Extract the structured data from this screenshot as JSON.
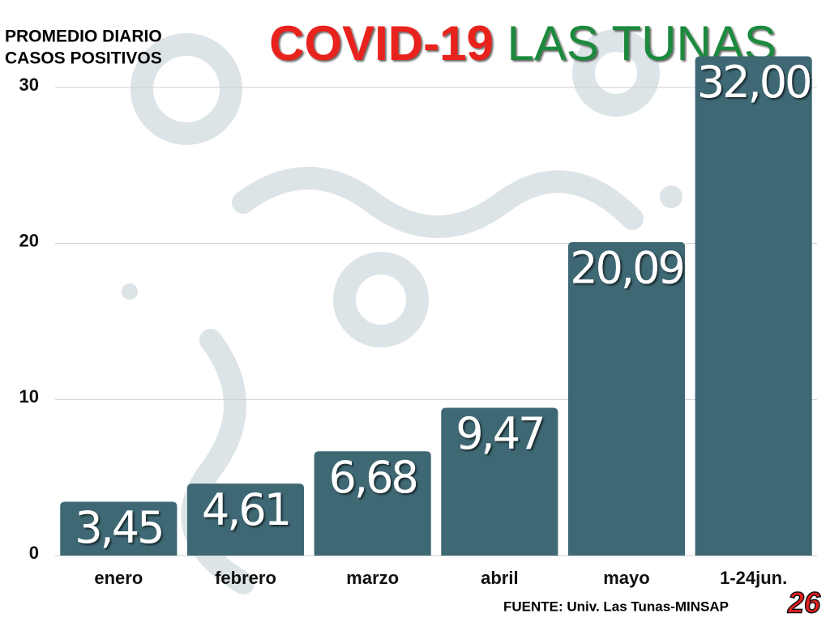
{
  "chart_data": {
    "type": "bar",
    "title": [
      "COVID-19",
      "LAS TUNAS"
    ],
    "title_colors": [
      "#e8211c",
      "#1e8a3e"
    ],
    "ylabel": [
      "PROMEDIO DIARIO",
      "CASOS POSITIVOS"
    ],
    "categories": [
      "enero",
      "febrero",
      "marzo",
      "abril",
      "mayo",
      "1-24jun."
    ],
    "values": [
      3.45,
      4.61,
      6.68,
      9.47,
      20.09,
      32.0
    ],
    "value_labels": [
      "3,45",
      "4,61",
      "6,68",
      "9,47",
      "20,09",
      "32,00"
    ],
    "color": "#3e6874",
    "ylim": [
      0,
      30
    ],
    "yticks": [
      0,
      10,
      20,
      30
    ],
    "grid": true,
    "source": "FUENTE: Univ. Las Tunas-MINSAP",
    "logo": "26"
  }
}
